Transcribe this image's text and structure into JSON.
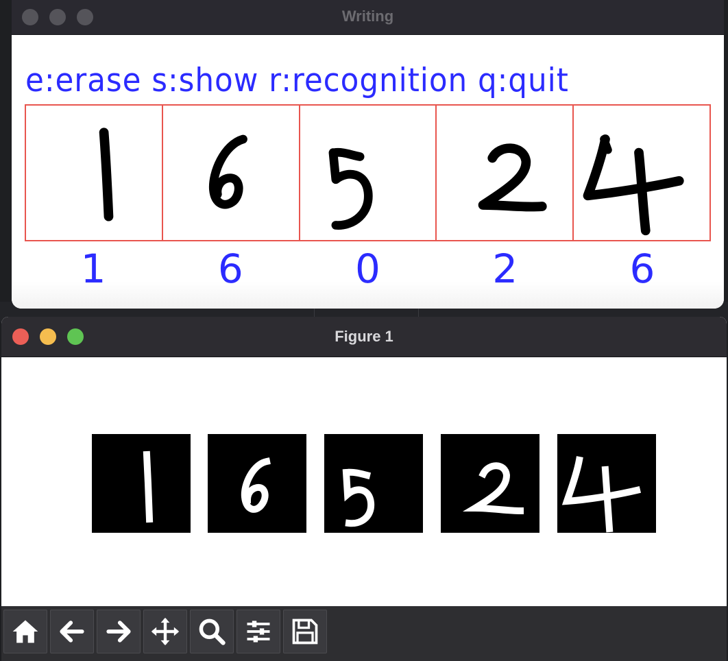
{
  "writing_window": {
    "title": "Writing",
    "instructions": "e:erase s:show r:recognition q:quit",
    "handwritten_digits": [
      "1",
      "6",
      "5",
      "2",
      "4"
    ],
    "recognized": [
      "1",
      "6",
      "0",
      "2",
      "6"
    ],
    "colors": {
      "text": "#2b2bff",
      "grid": "#e8554e",
      "ink": "#000000"
    }
  },
  "figure_window": {
    "title": "Figure 1",
    "thumbnails": [
      "1",
      "6",
      "5",
      "2",
      "4"
    ],
    "toolbar": [
      {
        "icon": "home-icon"
      },
      {
        "icon": "arrow-left-icon"
      },
      {
        "icon": "arrow-right-icon"
      },
      {
        "icon": "move-icon"
      },
      {
        "icon": "zoom-icon"
      },
      {
        "icon": "sliders-icon"
      },
      {
        "icon": "save-icon"
      }
    ]
  },
  "traffic_lights": {
    "close": "#ec5f57",
    "minimize": "#f5bd4f",
    "zoom": "#5fc453"
  }
}
